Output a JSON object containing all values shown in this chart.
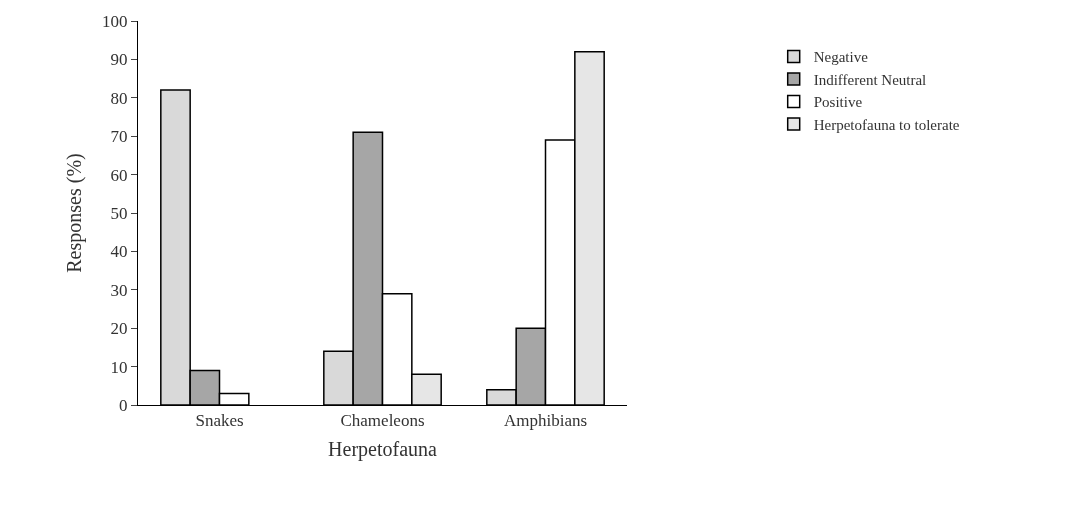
{
  "chart_data": {
    "type": "bar",
    "xlabel": "Herpetofauna",
    "ylabel": "Responses (%)",
    "categories": [
      "Snakes",
      "Chameleons",
      "Amphibians"
    ],
    "series": [
      {
        "name": "Negative",
        "color": "#d9d9d9",
        "values": [
          82,
          14,
          4
        ]
      },
      {
        "name": "Indifferent Neutral",
        "color": "#a6a6a6",
        "values": [
          9,
          71,
          20
        ]
      },
      {
        "name": "Positive",
        "color": "#ffffff",
        "values": [
          3,
          29,
          69
        ]
      },
      {
        "name": "Herpetofauna to tolerate",
        "color": "#e6e6e6",
        "values": [
          null,
          8,
          92
        ]
      }
    ],
    "ylim": [
      0,
      100
    ],
    "yticks": [
      0,
      10,
      20,
      30,
      40,
      50,
      60,
      70,
      80,
      90,
      100
    ],
    "legend": "right"
  }
}
